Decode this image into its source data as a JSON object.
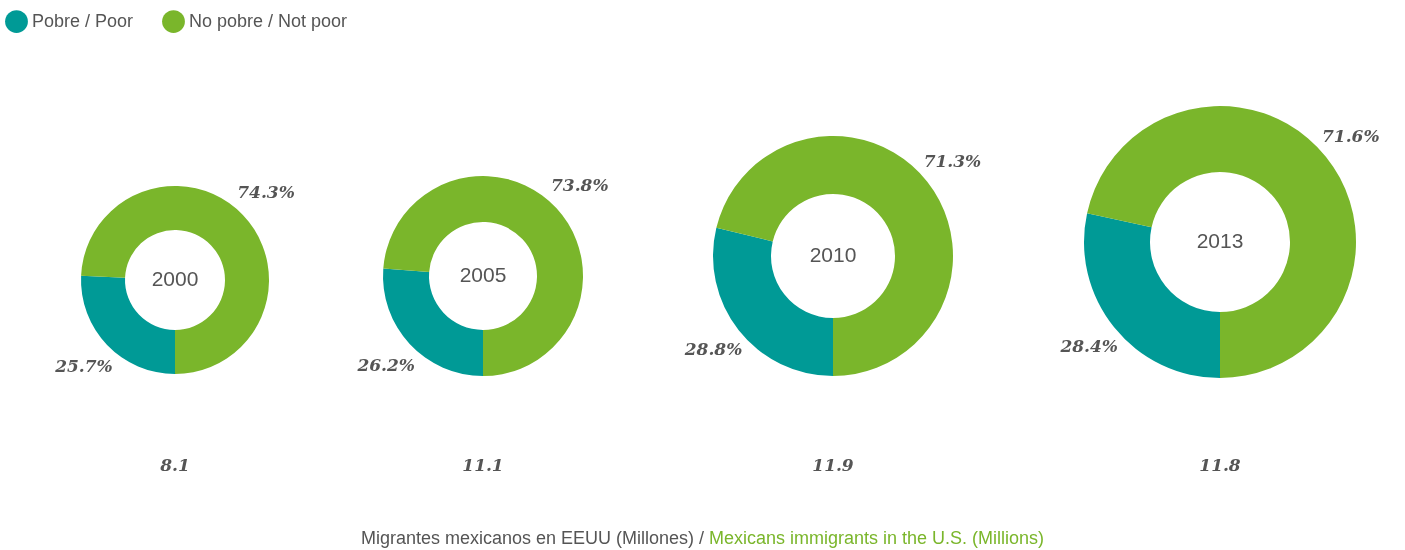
{
  "chart_data": [
    {
      "type": "donut",
      "title": "2000",
      "categories": [
        "Pobre / Poor",
        "No pobre / Not poor"
      ],
      "values": [
        25.7,
        74.3
      ],
      "colors": [
        "#009a96",
        "#7ab62b"
      ],
      "value_labels": [
        "25.7%",
        "74.3%"
      ],
      "legend": "top left",
      "annotations": [
        "8.1",
        "Migrantes mexicanos en EEUU (Millones) / Mexicans immigrants in the U.S. (Millions)"
      ]
    },
    {
      "type": "donut",
      "title": "2005",
      "categories": [
        null,
        null
      ],
      "values": [
        26.2,
        73.8
      ],
      "colors": [
        "#009a96",
        "#7ab62b"
      ],
      "value_labels": [
        "26.2%",
        "73.8%"
      ],
      "annotations": [
        "11.1"
      ]
    },
    {
      "type": "donut",
      "title": "2010",
      "categories": [
        null,
        null
      ],
      "values": [
        28.8,
        71.3
      ],
      "colors": [
        "#009a96",
        "#7ab62b"
      ],
      "value_labels": [
        "28.8%",
        "71.3%"
      ],
      "annotations": [
        "11.9"
      ]
    },
    {
      "type": "donut",
      "title": "2013",
      "categories": [
        null,
        null
      ],
      "values": [
        28.4,
        71.6
      ],
      "colors": [
        "#009a96",
        "#7ab62b"
      ],
      "value_labels": [
        "28.4%",
        "71.6%"
      ],
      "annotations": [
        "11.8"
      ]
    }
  ]
}
